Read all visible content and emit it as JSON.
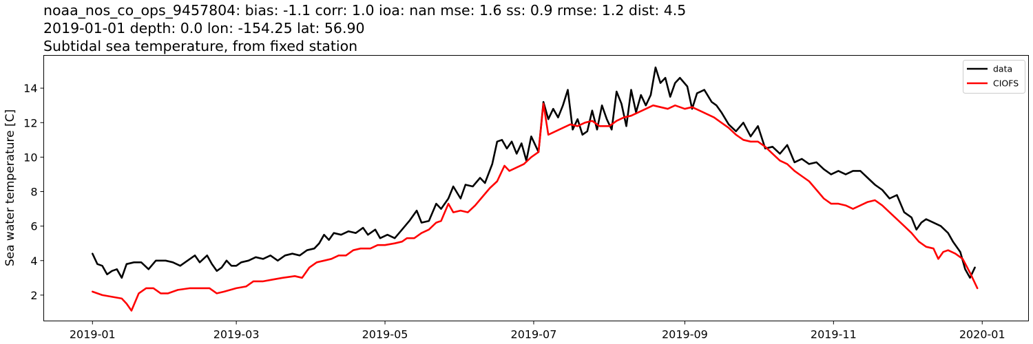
{
  "chart_data": {
    "type": "line",
    "title_lines": [
      "noaa_nos_co_ops_9457804: bias: -1.1  corr: 1.0  ioa: nan  mse: 1.6  ss: 0.9  rmse: 1.2  dist: 4.5",
      "2019-01-01 depth: 0.0 lon: -154.25 lat: 56.90",
      "Subtidal sea temperature, from fixed station"
    ],
    "xlabel": "",
    "ylabel": "Sea water temperature [C]",
    "x_range": [
      "2018-12-12",
      "2020-01-20"
    ],
    "ylim": [
      0.5,
      15.9
    ],
    "x_tick_dates": [
      "2019-01-01",
      "2019-03-01",
      "2019-05-01",
      "2019-07-01",
      "2019-09-01",
      "2019-11-01",
      "2020-01-01"
    ],
    "x_tick_labels": [
      "2019-01",
      "2019-03",
      "2019-05",
      "2019-07",
      "2019-09",
      "2019-11",
      "2020-01"
    ],
    "y_ticks": [
      2,
      4,
      6,
      8,
      10,
      12,
      14
    ],
    "y_tick_labels": [
      "2",
      "4",
      "6",
      "8",
      "10",
      "12",
      "14"
    ],
    "grid": false,
    "legend_position": "top-right",
    "series": [
      {
        "name": "data",
        "color": "#000000",
        "points": [
          [
            "2019-01-01",
            4.4
          ],
          [
            "2019-01-03",
            3.8
          ],
          [
            "2019-01-05",
            3.7
          ],
          [
            "2019-01-07",
            3.2
          ],
          [
            "2019-01-09",
            3.4
          ],
          [
            "2019-01-11",
            3.5
          ],
          [
            "2019-01-13",
            3.0
          ],
          [
            "2019-01-15",
            3.8
          ],
          [
            "2019-01-18",
            3.9
          ],
          [
            "2019-01-21",
            3.9
          ],
          [
            "2019-01-24",
            3.5
          ],
          [
            "2019-01-27",
            4.0
          ],
          [
            "2019-01-31",
            4.0
          ],
          [
            "2019-02-03",
            3.9
          ],
          [
            "2019-02-06",
            3.7
          ],
          [
            "2019-02-09",
            4.0
          ],
          [
            "2019-02-12",
            4.3
          ],
          [
            "2019-02-14",
            3.9
          ],
          [
            "2019-02-17",
            4.3
          ],
          [
            "2019-02-19",
            3.8
          ],
          [
            "2019-02-21",
            3.4
          ],
          [
            "2019-02-23",
            3.6
          ],
          [
            "2019-02-25",
            4.0
          ],
          [
            "2019-02-27",
            3.7
          ],
          [
            "2019-03-01",
            3.7
          ],
          [
            "2019-03-03",
            3.9
          ],
          [
            "2019-03-06",
            4.0
          ],
          [
            "2019-03-09",
            4.2
          ],
          [
            "2019-03-12",
            4.1
          ],
          [
            "2019-03-15",
            4.3
          ],
          [
            "2019-03-18",
            4.0
          ],
          [
            "2019-03-21",
            4.3
          ],
          [
            "2019-03-24",
            4.4
          ],
          [
            "2019-03-27",
            4.3
          ],
          [
            "2019-03-30",
            4.6
          ],
          [
            "2019-04-02",
            4.7
          ],
          [
            "2019-04-04",
            5.0
          ],
          [
            "2019-04-06",
            5.5
          ],
          [
            "2019-04-08",
            5.2
          ],
          [
            "2019-04-10",
            5.6
          ],
          [
            "2019-04-13",
            5.5
          ],
          [
            "2019-04-16",
            5.7
          ],
          [
            "2019-04-19",
            5.6
          ],
          [
            "2019-04-22",
            5.9
          ],
          [
            "2019-04-24",
            5.5
          ],
          [
            "2019-04-27",
            5.8
          ],
          [
            "2019-04-29",
            5.3
          ],
          [
            "2019-05-02",
            5.5
          ],
          [
            "2019-05-05",
            5.3
          ],
          [
            "2019-05-08",
            5.8
          ],
          [
            "2019-05-11",
            6.3
          ],
          [
            "2019-05-14",
            6.9
          ],
          [
            "2019-05-16",
            6.2
          ],
          [
            "2019-05-19",
            6.3
          ],
          [
            "2019-05-22",
            7.3
          ],
          [
            "2019-05-24",
            7.0
          ],
          [
            "2019-05-27",
            7.6
          ],
          [
            "2019-05-29",
            8.3
          ],
          [
            "2019-06-01",
            7.6
          ],
          [
            "2019-06-03",
            8.4
          ],
          [
            "2019-06-06",
            8.3
          ],
          [
            "2019-06-09",
            8.8
          ],
          [
            "2019-06-11",
            8.5
          ],
          [
            "2019-06-14",
            9.6
          ],
          [
            "2019-06-16",
            10.9
          ],
          [
            "2019-06-18",
            11.0
          ],
          [
            "2019-06-20",
            10.5
          ],
          [
            "2019-06-22",
            10.9
          ],
          [
            "2019-06-24",
            10.2
          ],
          [
            "2019-06-26",
            10.8
          ],
          [
            "2019-06-28",
            9.8
          ],
          [
            "2019-06-30",
            11.2
          ],
          [
            "2019-07-03",
            10.3
          ],
          [
            "2019-07-05",
            13.2
          ],
          [
            "2019-07-07",
            12.2
          ],
          [
            "2019-07-09",
            12.8
          ],
          [
            "2019-07-11",
            12.3
          ],
          [
            "2019-07-13",
            13.0
          ],
          [
            "2019-07-15",
            13.9
          ],
          [
            "2019-07-17",
            11.6
          ],
          [
            "2019-07-19",
            12.2
          ],
          [
            "2019-07-21",
            11.3
          ],
          [
            "2019-07-23",
            11.5
          ],
          [
            "2019-07-25",
            12.7
          ],
          [
            "2019-07-27",
            11.6
          ],
          [
            "2019-07-29",
            13.0
          ],
          [
            "2019-07-31",
            12.2
          ],
          [
            "2019-08-02",
            11.6
          ],
          [
            "2019-08-04",
            13.8
          ],
          [
            "2019-08-06",
            13.1
          ],
          [
            "2019-08-08",
            11.8
          ],
          [
            "2019-08-10",
            13.9
          ],
          [
            "2019-08-12",
            12.6
          ],
          [
            "2019-08-14",
            13.6
          ],
          [
            "2019-08-16",
            13.0
          ],
          [
            "2019-08-18",
            13.6
          ],
          [
            "2019-08-20",
            15.2
          ],
          [
            "2019-08-22",
            14.3
          ],
          [
            "2019-08-24",
            14.6
          ],
          [
            "2019-08-26",
            13.5
          ],
          [
            "2019-08-28",
            14.3
          ],
          [
            "2019-08-30",
            14.6
          ],
          [
            "2019-09-02",
            14.1
          ],
          [
            "2019-09-04",
            12.8
          ],
          [
            "2019-09-06",
            13.7
          ],
          [
            "2019-09-09",
            13.9
          ],
          [
            "2019-09-12",
            13.2
          ],
          [
            "2019-09-14",
            13.0
          ],
          [
            "2019-09-16",
            12.6
          ],
          [
            "2019-09-19",
            11.9
          ],
          [
            "2019-09-22",
            11.5
          ],
          [
            "2019-09-25",
            12.0
          ],
          [
            "2019-09-28",
            11.2
          ],
          [
            "2019-10-01",
            11.8
          ],
          [
            "2019-10-04",
            10.5
          ],
          [
            "2019-10-07",
            10.6
          ],
          [
            "2019-10-10",
            10.2
          ],
          [
            "2019-10-13",
            10.7
          ],
          [
            "2019-10-16",
            9.7
          ],
          [
            "2019-10-19",
            9.9
          ],
          [
            "2019-10-22",
            9.6
          ],
          [
            "2019-10-25",
            9.7
          ],
          [
            "2019-10-28",
            9.3
          ],
          [
            "2019-10-31",
            9.0
          ],
          [
            "2019-11-03",
            9.2
          ],
          [
            "2019-11-06",
            9.0
          ],
          [
            "2019-11-09",
            9.2
          ],
          [
            "2019-11-12",
            9.2
          ],
          [
            "2019-11-15",
            8.8
          ],
          [
            "2019-11-18",
            8.4
          ],
          [
            "2019-11-21",
            8.1
          ],
          [
            "2019-11-24",
            7.6
          ],
          [
            "2019-11-27",
            7.8
          ],
          [
            "2019-11-30",
            6.8
          ],
          [
            "2019-12-03",
            6.5
          ],
          [
            "2019-12-05",
            5.8
          ],
          [
            "2019-12-07",
            6.2
          ],
          [
            "2019-12-09",
            6.4
          ],
          [
            "2019-12-12",
            6.2
          ],
          [
            "2019-12-15",
            6.0
          ],
          [
            "2019-12-18",
            5.6
          ],
          [
            "2019-12-20",
            5.1
          ],
          [
            "2019-12-23",
            4.5
          ],
          [
            "2019-12-25",
            3.5
          ],
          [
            "2019-12-27",
            3.0
          ],
          [
            "2019-12-29",
            3.6
          ]
        ]
      },
      {
        "name": "CIOFS",
        "color": "#ff0000",
        "points": [
          [
            "2019-01-01",
            2.2
          ],
          [
            "2019-01-05",
            2.0
          ],
          [
            "2019-01-09",
            1.9
          ],
          [
            "2019-01-13",
            1.8
          ],
          [
            "2019-01-15",
            1.5
          ],
          [
            "2019-01-17",
            1.1
          ],
          [
            "2019-01-20",
            2.1
          ],
          [
            "2019-01-23",
            2.4
          ],
          [
            "2019-01-26",
            2.4
          ],
          [
            "2019-01-29",
            2.1
          ],
          [
            "2019-02-01",
            2.1
          ],
          [
            "2019-02-05",
            2.3
          ],
          [
            "2019-02-10",
            2.4
          ],
          [
            "2019-02-15",
            2.4
          ],
          [
            "2019-02-18",
            2.4
          ],
          [
            "2019-02-21",
            2.1
          ],
          [
            "2019-02-24",
            2.2
          ],
          [
            "2019-03-01",
            2.4
          ],
          [
            "2019-03-05",
            2.5
          ],
          [
            "2019-03-08",
            2.8
          ],
          [
            "2019-03-12",
            2.8
          ],
          [
            "2019-03-16",
            2.9
          ],
          [
            "2019-03-20",
            3.0
          ],
          [
            "2019-03-25",
            3.1
          ],
          [
            "2019-03-28",
            3.0
          ],
          [
            "2019-03-31",
            3.6
          ],
          [
            "2019-04-03",
            3.9
          ],
          [
            "2019-04-06",
            4.0
          ],
          [
            "2019-04-09",
            4.1
          ],
          [
            "2019-04-12",
            4.3
          ],
          [
            "2019-04-15",
            4.3
          ],
          [
            "2019-04-18",
            4.6
          ],
          [
            "2019-04-21",
            4.7
          ],
          [
            "2019-04-25",
            4.7
          ],
          [
            "2019-04-28",
            4.9
          ],
          [
            "2019-05-01",
            4.9
          ],
          [
            "2019-05-05",
            5.0
          ],
          [
            "2019-05-08",
            5.1
          ],
          [
            "2019-05-10",
            5.3
          ],
          [
            "2019-05-13",
            5.3
          ],
          [
            "2019-05-16",
            5.6
          ],
          [
            "2019-05-19",
            5.8
          ],
          [
            "2019-05-22",
            6.2
          ],
          [
            "2019-05-24",
            6.3
          ],
          [
            "2019-05-27",
            7.3
          ],
          [
            "2019-05-29",
            6.8
          ],
          [
            "2019-06-01",
            6.9
          ],
          [
            "2019-06-04",
            6.8
          ],
          [
            "2019-06-07",
            7.2
          ],
          [
            "2019-06-10",
            7.7
          ],
          [
            "2019-06-13",
            8.2
          ],
          [
            "2019-06-16",
            8.6
          ],
          [
            "2019-06-19",
            9.5
          ],
          [
            "2019-06-21",
            9.2
          ],
          [
            "2019-06-24",
            9.4
          ],
          [
            "2019-06-27",
            9.6
          ],
          [
            "2019-06-30",
            10.0
          ],
          [
            "2019-07-03",
            10.3
          ],
          [
            "2019-07-05",
            13.1
          ],
          [
            "2019-07-07",
            11.3
          ],
          [
            "2019-07-10",
            11.5
          ],
          [
            "2019-07-13",
            11.7
          ],
          [
            "2019-07-16",
            11.9
          ],
          [
            "2019-07-19",
            11.8
          ],
          [
            "2019-07-22",
            12.0
          ],
          [
            "2019-07-25",
            12.1
          ],
          [
            "2019-07-28",
            11.8
          ],
          [
            "2019-08-01",
            11.8
          ],
          [
            "2019-08-04",
            12.1
          ],
          [
            "2019-08-07",
            12.3
          ],
          [
            "2019-08-10",
            12.4
          ],
          [
            "2019-08-13",
            12.6
          ],
          [
            "2019-08-16",
            12.8
          ],
          [
            "2019-08-19",
            13.0
          ],
          [
            "2019-08-22",
            12.9
          ],
          [
            "2019-08-25",
            12.8
          ],
          [
            "2019-08-28",
            13.0
          ],
          [
            "2019-09-01",
            12.8
          ],
          [
            "2019-09-04",
            12.9
          ],
          [
            "2019-09-07",
            12.7
          ],
          [
            "2019-09-10",
            12.5
          ],
          [
            "2019-09-13",
            12.3
          ],
          [
            "2019-09-16",
            12.0
          ],
          [
            "2019-09-19",
            11.7
          ],
          [
            "2019-09-22",
            11.3
          ],
          [
            "2019-09-25",
            11.0
          ],
          [
            "2019-09-28",
            10.9
          ],
          [
            "2019-10-01",
            10.9
          ],
          [
            "2019-10-04",
            10.6
          ],
          [
            "2019-10-07",
            10.2
          ],
          [
            "2019-10-10",
            9.8
          ],
          [
            "2019-10-13",
            9.6
          ],
          [
            "2019-10-16",
            9.2
          ],
          [
            "2019-10-19",
            8.9
          ],
          [
            "2019-10-22",
            8.6
          ],
          [
            "2019-10-25",
            8.1
          ],
          [
            "2019-10-28",
            7.6
          ],
          [
            "2019-10-31",
            7.3
          ],
          [
            "2019-11-03",
            7.3
          ],
          [
            "2019-11-06",
            7.2
          ],
          [
            "2019-11-09",
            7.0
          ],
          [
            "2019-11-12",
            7.2
          ],
          [
            "2019-11-15",
            7.4
          ],
          [
            "2019-11-18",
            7.5
          ],
          [
            "2019-11-21",
            7.2
          ],
          [
            "2019-11-24",
            6.8
          ],
          [
            "2019-11-27",
            6.4
          ],
          [
            "2019-11-30",
            6.0
          ],
          [
            "2019-12-03",
            5.6
          ],
          [
            "2019-12-06",
            5.1
          ],
          [
            "2019-12-09",
            4.8
          ],
          [
            "2019-12-12",
            4.7
          ],
          [
            "2019-12-14",
            4.1
          ],
          [
            "2019-12-16",
            4.5
          ],
          [
            "2019-12-18",
            4.6
          ],
          [
            "2019-12-21",
            4.4
          ],
          [
            "2019-12-24",
            4.1
          ],
          [
            "2019-12-27",
            3.3
          ],
          [
            "2019-12-30",
            2.4
          ]
        ]
      }
    ]
  }
}
